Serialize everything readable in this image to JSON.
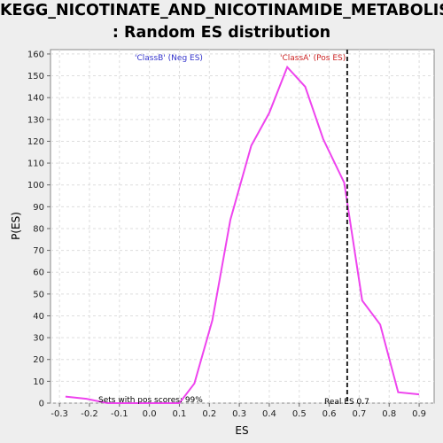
{
  "chart_data": {
    "type": "line",
    "title_line1": "KEGG_NICOTINATE_AND_NICOTINAMIDE_METABOLISM",
    "title_line2": ": Random ES distribution",
    "xlabel": "ES",
    "ylabel": "P(ES)",
    "xlim": [
      -0.33,
      0.95
    ],
    "ylim": [
      0,
      162
    ],
    "x_ticks": [
      "-0.3",
      "-0.2",
      "-0.1",
      "0.0",
      "0.1",
      "0.2",
      "0.3",
      "0.4",
      "0.5",
      "0.6",
      "0.7",
      "0.8",
      "0.9"
    ],
    "y_ticks": [
      "0",
      "10",
      "20",
      "30",
      "40",
      "50",
      "60",
      "70",
      "80",
      "90",
      "100",
      "110",
      "120",
      "130",
      "140",
      "150",
      "160"
    ],
    "grid": true,
    "series": [
      {
        "color": "#ee44ee",
        "x": [
          -0.28,
          -0.21,
          -0.14,
          -0.08,
          -0.02,
          0.04,
          0.1,
          0.15,
          0.21,
          0.27,
          0.34,
          0.4,
          0.46,
          0.52,
          0.58,
          0.65,
          0.71,
          0.77,
          0.83,
          0.9
        ],
        "y": [
          3,
          2,
          0,
          0,
          0,
          0,
          0,
          9,
          38,
          84,
          118,
          133,
          154,
          145,
          121,
          101,
          47,
          36,
          5,
          4
        ]
      }
    ],
    "real_es": 0.66,
    "annotations": {
      "neg": "'ClassB' (Neg ES)",
      "pos": "'ClassA' (Pos ES)",
      "sets": "Sets with pos scores: 99%",
      "real": "Real ES 0.7"
    },
    "colors": {
      "neg": "#3333cc",
      "pos": "#cc2222",
      "curve": "#ee44ee",
      "real_line": "#222222"
    }
  }
}
